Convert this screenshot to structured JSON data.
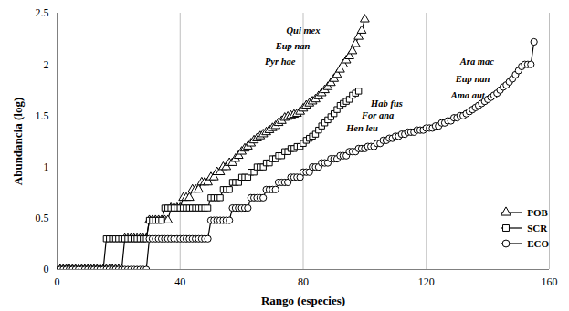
{
  "chart_data": {
    "type": "line",
    "xlabel": "Rango (especies)",
    "ylabel": "Abundancia (log)",
    "xlim": [
      0,
      160
    ],
    "xticks": [
      0,
      40,
      80,
      120,
      160
    ],
    "ylim": [
      0,
      2.5
    ],
    "yticks": [
      0,
      0.5,
      1,
      1.5,
      2,
      2.5
    ],
    "grid": "x",
    "legend": "lower right",
    "series": [
      {
        "name": "POB",
        "color": "#000000",
        "marker": "triangle",
        "x": [
          1,
          2,
          3,
          4,
          5,
          6,
          7,
          8,
          9,
          10,
          11,
          12,
          13,
          14,
          15,
          16,
          17,
          18,
          19,
          20,
          21,
          22,
          23,
          24,
          25,
          26,
          27,
          28,
          29,
          30,
          31,
          32,
          33,
          34,
          35,
          36,
          37,
          38,
          39,
          40,
          41,
          42,
          43,
          44,
          45,
          46,
          47,
          48,
          49,
          50,
          51,
          52,
          53,
          54,
          55,
          56,
          57,
          58,
          59,
          60,
          61,
          62,
          63,
          64,
          65,
          66,
          67,
          68,
          69,
          70,
          71,
          72,
          73,
          74,
          75,
          76,
          77,
          78,
          79,
          80,
          81,
          82,
          83,
          84,
          85,
          86,
          87,
          88,
          89,
          90,
          91,
          92,
          93,
          94,
          95,
          96,
          97,
          98,
          99,
          100
        ],
        "values": [
          0,
          0,
          0,
          0,
          0,
          0,
          0,
          0,
          0,
          0,
          0,
          0,
          0,
          0,
          0,
          0,
          0,
          0,
          0,
          0,
          0,
          0.3,
          0.3,
          0.3,
          0.3,
          0.3,
          0.3,
          0.3,
          0.3,
          0.48,
          0.48,
          0.48,
          0.48,
          0.48,
          0.48,
          0.48,
          0.6,
          0.6,
          0.6,
          0.6,
          0.7,
          0.7,
          0.7,
          0.78,
          0.78,
          0.78,
          0.85,
          0.85,
          0.85,
          0.9,
          0.9,
          0.95,
          0.95,
          1,
          1,
          1.04,
          1.04,
          1.08,
          1.11,
          1.15,
          1.18,
          1.2,
          1.23,
          1.26,
          1.28,
          1.3,
          1.32,
          1.34,
          1.36,
          1.38,
          1.4,
          1.43,
          1.45,
          1.48,
          1.49,
          1.5,
          1.51,
          1.52,
          1.54,
          1.57,
          1.6,
          1.62,
          1.64,
          1.66,
          1.69,
          1.72,
          1.75,
          1.78,
          1.82,
          1.86,
          1.9,
          1.95,
          2,
          2.04,
          2.08,
          2.13,
          2.2,
          2.27,
          2.33,
          2.44
        ]
      },
      {
        "name": "SCR",
        "color": "#000000",
        "marker": "square",
        "x": [
          1,
          2,
          3,
          4,
          5,
          6,
          7,
          8,
          9,
          10,
          11,
          12,
          13,
          14,
          15,
          16,
          17,
          18,
          19,
          20,
          21,
          22,
          23,
          24,
          25,
          26,
          27,
          28,
          29,
          30,
          31,
          32,
          33,
          34,
          35,
          36,
          37,
          38,
          39,
          40,
          41,
          42,
          43,
          44,
          45,
          46,
          47,
          48,
          49,
          50,
          51,
          52,
          53,
          54,
          55,
          56,
          57,
          58,
          59,
          60,
          61,
          62,
          63,
          64,
          65,
          66,
          67,
          68,
          69,
          70,
          71,
          72,
          73,
          74,
          75,
          76,
          77,
          78,
          79,
          80,
          81,
          82,
          83,
          84,
          85,
          86,
          87,
          88,
          89,
          90,
          91,
          92,
          93,
          94,
          95,
          96,
          97,
          98
        ],
        "values": [
          0,
          0,
          0,
          0,
          0,
          0,
          0,
          0,
          0,
          0,
          0,
          0,
          0,
          0,
          0,
          0.3,
          0.3,
          0.3,
          0.3,
          0.3,
          0.3,
          0.3,
          0.3,
          0.3,
          0.3,
          0.3,
          0.3,
          0.3,
          0.3,
          0.48,
          0.48,
          0.48,
          0.48,
          0.48,
          0.6,
          0.6,
          0.6,
          0.6,
          0.6,
          0.6,
          0.6,
          0.6,
          0.6,
          0.6,
          0.6,
          0.6,
          0.6,
          0.6,
          0.6,
          0.7,
          0.7,
          0.7,
          0.7,
          0.78,
          0.78,
          0.78,
          0.85,
          0.85,
          0.85,
          0.9,
          0.9,
          0.9,
          0.95,
          0.95,
          1,
          1,
          1,
          1.04,
          1.04,
          1.08,
          1.08,
          1.11,
          1.11,
          1.15,
          1.15,
          1.18,
          1.18,
          1.2,
          1.2,
          1.23,
          1.26,
          1.28,
          1.3,
          1.32,
          1.36,
          1.4,
          1.43,
          1.46,
          1.49,
          1.52,
          1.56,
          1.6,
          1.62,
          1.64,
          1.66,
          1.7,
          1.72,
          1.74
        ]
      },
      {
        "name": "ECO",
        "color": "#000000",
        "marker": "circle",
        "x": [
          1,
          2,
          3,
          4,
          5,
          6,
          7,
          8,
          9,
          10,
          11,
          12,
          13,
          14,
          15,
          16,
          17,
          18,
          19,
          20,
          21,
          22,
          23,
          24,
          25,
          26,
          27,
          28,
          29,
          30,
          31,
          32,
          33,
          34,
          35,
          36,
          37,
          38,
          39,
          40,
          41,
          42,
          43,
          44,
          45,
          46,
          47,
          48,
          49,
          50,
          51,
          52,
          53,
          54,
          55,
          56,
          57,
          58,
          59,
          60,
          61,
          62,
          63,
          64,
          65,
          66,
          67,
          68,
          69,
          70,
          71,
          72,
          73,
          74,
          75,
          76,
          77,
          78,
          79,
          80,
          81,
          82,
          83,
          84,
          85,
          86,
          87,
          88,
          89,
          90,
          91,
          92,
          93,
          94,
          95,
          96,
          97,
          98,
          99,
          100,
          101,
          102,
          103,
          104,
          105,
          106,
          107,
          108,
          109,
          110,
          111,
          112,
          113,
          114,
          115,
          116,
          117,
          118,
          119,
          120,
          121,
          122,
          123,
          124,
          125,
          126,
          127,
          128,
          129,
          130,
          131,
          132,
          133,
          134,
          135,
          136,
          137,
          138,
          139,
          140,
          141,
          142,
          143,
          144,
          145,
          146,
          147,
          148,
          149,
          150,
          151,
          152,
          153,
          154,
          155
        ],
        "values": [
          0,
          0,
          0,
          0,
          0,
          0,
          0,
          0,
          0,
          0,
          0,
          0,
          0,
          0,
          0,
          0,
          0,
          0,
          0,
          0,
          0,
          0,
          0,
          0,
          0,
          0,
          0,
          0,
          0,
          0.3,
          0.3,
          0.3,
          0.3,
          0.3,
          0.3,
          0.3,
          0.3,
          0.3,
          0.3,
          0.3,
          0.3,
          0.3,
          0.3,
          0.3,
          0.3,
          0.3,
          0.3,
          0.3,
          0.3,
          0.48,
          0.48,
          0.48,
          0.48,
          0.48,
          0.48,
          0.48,
          0.6,
          0.6,
          0.6,
          0.6,
          0.6,
          0.6,
          0.7,
          0.7,
          0.7,
          0.7,
          0.7,
          0.78,
          0.78,
          0.78,
          0.78,
          0.85,
          0.85,
          0.85,
          0.85,
          0.9,
          0.9,
          0.9,
          0.9,
          0.95,
          0.95,
          0.95,
          1,
          1,
          1,
          1.04,
          1.04,
          1.04,
          1.08,
          1.08,
          1.08,
          1.11,
          1.11,
          1.11,
          1.15,
          1.15,
          1.15,
          1.18,
          1.18,
          1.18,
          1.2,
          1.2,
          1.2,
          1.23,
          1.23,
          1.26,
          1.26,
          1.28,
          1.28,
          1.3,
          1.3,
          1.32,
          1.32,
          1.34,
          1.34,
          1.34,
          1.36,
          1.36,
          1.36,
          1.38,
          1.38,
          1.38,
          1.4,
          1.4,
          1.43,
          1.43,
          1.45,
          1.45,
          1.48,
          1.48,
          1.5,
          1.5,
          1.52,
          1.54,
          1.56,
          1.58,
          1.6,
          1.62,
          1.64,
          1.66,
          1.68,
          1.7,
          1.72,
          1.75,
          1.78,
          1.8,
          1.83,
          1.86,
          1.9,
          1.94,
          1.98,
          2,
          2,
          2,
          2.22
        ]
      }
    ],
    "annotations": [
      {
        "text": "Qui mex",
        "x": 74.5,
        "y": 2.33
      },
      {
        "text": "Eup nan",
        "x": 71,
        "y": 2.18
      },
      {
        "text": "Pyr hae",
        "x": 67.5,
        "y": 2.03
      },
      {
        "text": "Hab fus",
        "x": 102,
        "y": 1.62
      },
      {
        "text": "For ana",
        "x": 99,
        "y": 1.5
      },
      {
        "text": "Hen leu",
        "x": 94,
        "y": 1.38
      },
      {
        "text": "Ara mac",
        "x": 131,
        "y": 2.03
      },
      {
        "text": "Eup nan",
        "x": 129.5,
        "y": 1.86
      },
      {
        "text": "Ama aut",
        "x": 128,
        "y": 1.7
      }
    ]
  }
}
